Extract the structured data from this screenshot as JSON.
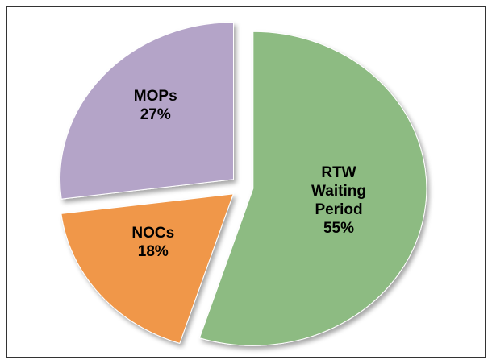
{
  "chart_data": {
    "type": "pie",
    "categories": [
      "RTW Waiting Period",
      "NOCs",
      "MOPs"
    ],
    "values": [
      55,
      18,
      27
    ],
    "value_labels": [
      "55%",
      "18%",
      "27%"
    ],
    "colors": [
      "#8dbb82",
      "#f0974a",
      "#b4a4c8"
    ]
  }
}
